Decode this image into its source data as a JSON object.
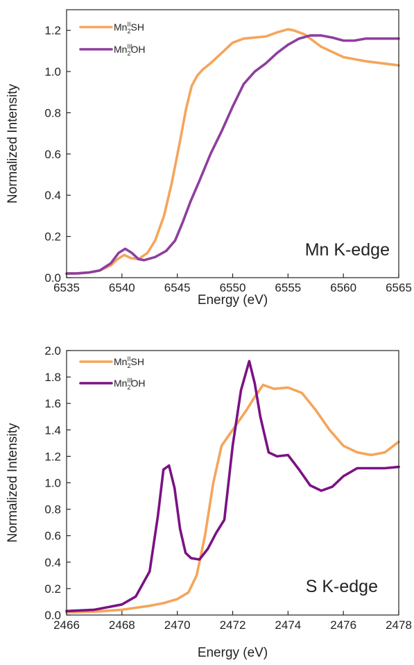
{
  "chart_data": [
    {
      "type": "line",
      "xlabel": "Energy (eV)",
      "ylabel": "Normalized Intensity",
      "xlim": [
        6535,
        6565
      ],
      "ylim": [
        0,
        1.3
      ],
      "xticks": [
        6535,
        6540,
        6545,
        6550,
        6555,
        6560,
        6565
      ],
      "yticks": [
        0.0,
        0.2,
        0.4,
        0.6,
        0.8,
        1.0,
        1.2
      ],
      "xtick_labels": [
        "6535",
        "6540",
        "6545",
        "6550",
        "6555",
        "6560",
        "6565"
      ],
      "ytick_labels": [
        "0.0",
        "0.2",
        "0.4",
        "0.6",
        "0.8",
        "1.0",
        "1.2"
      ],
      "annotation": "Mn K-edge",
      "legend_position": "top-left",
      "series": [
        {
          "name": "MnII2SH",
          "legend": {
            "base": "Mn",
            "sup": "II",
            "sub": "2",
            "rest": "SH"
          },
          "color": "#F5A55A",
          "x": [
            6535,
            6536,
            6537,
            6538,
            6539,
            6539.6,
            6540.2,
            6540.8,
            6541.5,
            6542.3,
            6543,
            6543.8,
            6544.5,
            6545.2,
            6545.8,
            6546.3,
            6546.8,
            6547.3,
            6548,
            6549,
            6550,
            6551,
            6552,
            6553,
            6554,
            6555,
            6555.5,
            6556.5,
            6558,
            6560,
            6562,
            6565
          ],
          "y": [
            0.02,
            0.021,
            0.025,
            0.035,
            0.06,
            0.09,
            0.11,
            0.095,
            0.09,
            0.12,
            0.18,
            0.3,
            0.46,
            0.65,
            0.82,
            0.93,
            0.98,
            1.01,
            1.04,
            1.09,
            1.14,
            1.16,
            1.165,
            1.17,
            1.19,
            1.205,
            1.2,
            1.18,
            1.12,
            1.07,
            1.05,
            1.03
          ]
        },
        {
          "name": "MnIII2OH",
          "legend": {
            "base": "Mn",
            "sup": "III",
            "sub": "2",
            "rest": "OH"
          },
          "color": "#8E3E9E",
          "x": [
            6535,
            6536,
            6537,
            6538,
            6539,
            6539.7,
            6540.3,
            6540.9,
            6541.5,
            6542,
            6543,
            6544,
            6544.8,
            6545.5,
            6546.2,
            6547,
            6548,
            6549,
            6550,
            6551,
            6552,
            6553,
            6554,
            6555,
            6556,
            6557,
            6558,
            6559,
            6560,
            6561,
            6562,
            6563,
            6565
          ],
          "y": [
            0.02,
            0.021,
            0.025,
            0.035,
            0.07,
            0.12,
            0.14,
            0.12,
            0.09,
            0.085,
            0.1,
            0.13,
            0.18,
            0.27,
            0.37,
            0.47,
            0.6,
            0.71,
            0.83,
            0.94,
            1.0,
            1.04,
            1.09,
            1.13,
            1.16,
            1.175,
            1.175,
            1.165,
            1.15,
            1.15,
            1.16,
            1.16,
            1.16
          ]
        }
      ]
    },
    {
      "type": "line",
      "xlabel": "Energy (eV)",
      "ylabel": "Normalized Intensity",
      "xlim": [
        2466,
        2478
      ],
      "ylim": [
        0,
        2.0
      ],
      "xticks": [
        2466,
        2468,
        2470,
        2472,
        2474,
        2476,
        2478
      ],
      "yticks": [
        0.0,
        0.2,
        0.4,
        0.6,
        0.8,
        1.0,
        1.2,
        1.4,
        1.6,
        1.8,
        2.0
      ],
      "xtick_labels": [
        "2466",
        "2468",
        "2470",
        "2472",
        "2474",
        "2476",
        "2478"
      ],
      "ytick_labels": [
        "0.0",
        "0.2",
        "0.4",
        "0.6",
        "0.8",
        "1.0",
        "1.2",
        "1.4",
        "1.6",
        "1.8",
        "2.0"
      ],
      "annotation": "S K-edge",
      "legend_position": "top-left",
      "series": [
        {
          "name": "MnII2SH",
          "legend": {
            "base": "Mn",
            "sup": "II",
            "sub": "2",
            "rest": "SH"
          },
          "color": "#F5A55A",
          "x": [
            2466,
            2467,
            2468,
            2469,
            2469.5,
            2470,
            2470.4,
            2470.7,
            2471,
            2471.3,
            2471.6,
            2472,
            2472.5,
            2472.8,
            2473.1,
            2473.5,
            2474,
            2474.5,
            2475,
            2475.5,
            2476,
            2476.5,
            2477,
            2477.5,
            2478
          ],
          "y": [
            0.02,
            0.025,
            0.04,
            0.07,
            0.09,
            0.12,
            0.17,
            0.3,
            0.6,
            1.0,
            1.28,
            1.4,
            1.55,
            1.65,
            1.74,
            1.71,
            1.72,
            1.68,
            1.55,
            1.4,
            1.28,
            1.23,
            1.21,
            1.23,
            1.31
          ]
        },
        {
          "name": "MnIII2OH",
          "legend": {
            "base": "Mn",
            "sup": "III",
            "sub": "2",
            "rest": "OH"
          },
          "color": "#7B1284",
          "x": [
            2466,
            2467,
            2467.5,
            2468,
            2468.5,
            2469,
            2469.3,
            2469.5,
            2469.7,
            2469.9,
            2470.1,
            2470.3,
            2470.5,
            2470.8,
            2471.1,
            2471.4,
            2471.7,
            2472,
            2472.3,
            2472.6,
            2472.8,
            2473,
            2473.3,
            2473.6,
            2474,
            2474.4,
            2474.8,
            2475.2,
            2475.6,
            2476,
            2476.5,
            2477,
            2477.5,
            2478
          ],
          "y": [
            0.03,
            0.04,
            0.06,
            0.08,
            0.14,
            0.33,
            0.75,
            1.1,
            1.13,
            0.96,
            0.65,
            0.47,
            0.43,
            0.42,
            0.5,
            0.62,
            0.72,
            1.28,
            1.7,
            1.92,
            1.75,
            1.5,
            1.23,
            1.2,
            1.21,
            1.1,
            0.98,
            0.94,
            0.97,
            1.05,
            1.11,
            1.11,
            1.11,
            1.12
          ]
        }
      ]
    }
  ]
}
